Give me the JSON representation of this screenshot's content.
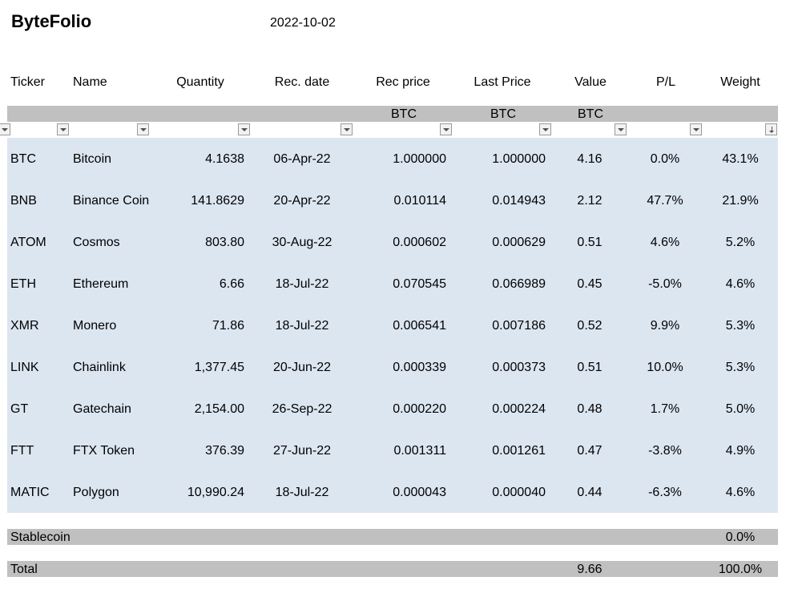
{
  "header": {
    "title": "ByteFolio",
    "date": "2022-10-02"
  },
  "columns": {
    "ticker": "Ticker",
    "name": "Name",
    "quantity": "Quantity",
    "rec_date": "Rec. date",
    "rec_price": "Rec price",
    "last_price": "Last Price",
    "value": "Value",
    "pl": "P/L",
    "weight": "Weight"
  },
  "units": {
    "rec_price": "BTC",
    "last_price": "BTC",
    "value": "BTC"
  },
  "rows": [
    {
      "ticker": "BTC",
      "name": "Bitcoin",
      "quantity": "4.1638",
      "rec_date": "06-Apr-22",
      "rec_price": "1.000000",
      "last_price": "1.000000",
      "value": "4.16",
      "pl": "0.0%",
      "weight": "43.1%"
    },
    {
      "ticker": "BNB",
      "name": "Binance Coin",
      "quantity": "141.8629",
      "rec_date": "20-Apr-22",
      "rec_price": "0.010114",
      "last_price": "0.014943",
      "value": "2.12",
      "pl": "47.7%",
      "weight": "21.9%"
    },
    {
      "ticker": "ATOM",
      "name": "Cosmos",
      "quantity": "803.80",
      "rec_date": "30-Aug-22",
      "rec_price": "0.000602",
      "last_price": "0.000629",
      "value": "0.51",
      "pl": "4.6%",
      "weight": "5.2%"
    },
    {
      "ticker": "ETH",
      "name": "Ethereum",
      "quantity": "6.66",
      "rec_date": "18-Jul-22",
      "rec_price": "0.070545",
      "last_price": "0.066989",
      "value": "0.45",
      "pl": "-5.0%",
      "weight": "4.6%"
    },
    {
      "ticker": "XMR",
      "name": "Monero",
      "quantity": "71.86",
      "rec_date": "18-Jul-22",
      "rec_price": "0.006541",
      "last_price": "0.007186",
      "value": "0.52",
      "pl": "9.9%",
      "weight": "5.3%"
    },
    {
      "ticker": "LINK",
      "name": "Chainlink",
      "quantity": "1,377.45",
      "rec_date": "20-Jun-22",
      "rec_price": "0.000339",
      "last_price": "0.000373",
      "value": "0.51",
      "pl": "10.0%",
      "weight": "5.3%"
    },
    {
      "ticker": "GT",
      "name": "Gatechain",
      "quantity": "2,154.00",
      "rec_date": "26-Sep-22",
      "rec_price": "0.000220",
      "last_price": "0.000224",
      "value": "0.48",
      "pl": "1.7%",
      "weight": "5.0%"
    },
    {
      "ticker": "FTT",
      "name": "FTX Token",
      "quantity": "376.39",
      "rec_date": "27-Jun-22",
      "rec_price": "0.001311",
      "last_price": "0.001261",
      "value": "0.47",
      "pl": "-3.8%",
      "weight": "4.9%"
    },
    {
      "ticker": "MATIC",
      "name": "Polygon",
      "quantity": "10,990.24",
      "rec_date": "18-Jul-22",
      "rec_price": "0.000043",
      "last_price": "0.000040",
      "value": "0.44",
      "pl": "-6.3%",
      "weight": "4.6%"
    }
  ],
  "stablecoin": {
    "label": "Stablecoin",
    "weight": "0.0%"
  },
  "total": {
    "label": "Total",
    "value": "9.66",
    "weight": "100.0%"
  },
  "colors": {
    "header_band": "#c0c0c0",
    "data_band": "#dce6f1"
  },
  "icons": {
    "filter": "filter-dropdown-icon",
    "sorted": "sort-descending-icon"
  }
}
